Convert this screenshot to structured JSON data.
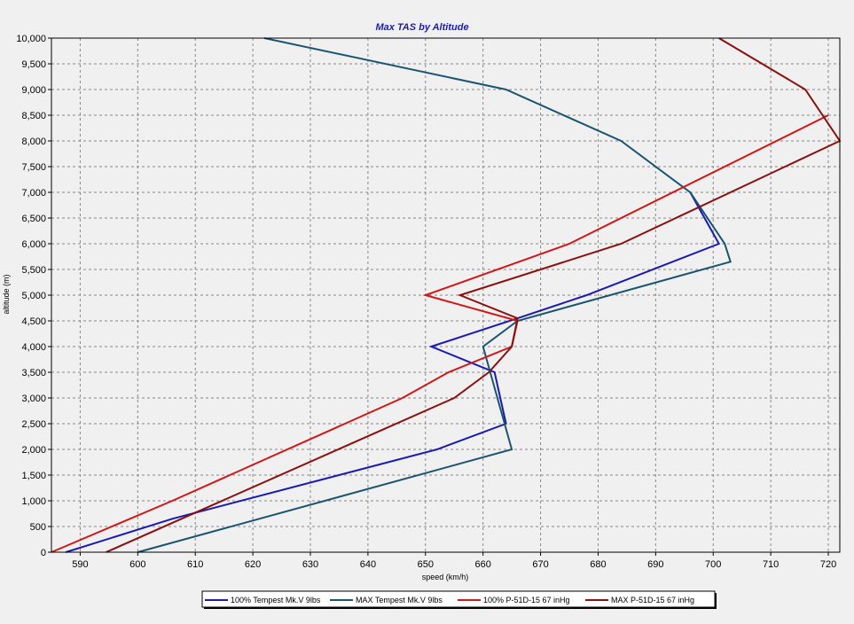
{
  "chart_data": {
    "type": "line",
    "title": "Max TAS by Altitude",
    "title_color": "#1c1cb0",
    "xlabel": "speed (km/h)",
    "ylabel": "altitude (m)",
    "xlim": [
      585,
      722
    ],
    "ylim": [
      0,
      10000
    ],
    "x_ticks": [
      590,
      600,
      610,
      620,
      630,
      640,
      650,
      660,
      670,
      680,
      690,
      700,
      710,
      720
    ],
    "y_ticks": [
      0,
      500,
      1000,
      1500,
      2000,
      2500,
      3000,
      3500,
      4000,
      4500,
      5000,
      5500,
      6000,
      6500,
      7000,
      7500,
      8000,
      8500,
      9000,
      9500,
      10000
    ],
    "y_tick_labels": [
      "0",
      "500",
      "1,000",
      "1,500",
      "2,000",
      "2,500",
      "3,000",
      "3,500",
      "4,000",
      "4,500",
      "5,000",
      "5,500",
      "6,000",
      "6,500",
      "7,000",
      "7,500",
      "8,000",
      "8,500",
      "9,000",
      "9,500",
      "10,000"
    ],
    "grid": true,
    "legend_position": "bottom",
    "series": [
      {
        "name": "100% Tempest Mk.V  9lbs",
        "color": "#1a1ab0",
        "points": [
          [
            587.5,
            0
          ],
          [
            606,
            650
          ],
          [
            652,
            2000
          ],
          [
            664,
            2500
          ],
          [
            662,
            3500
          ],
          [
            651,
            4000
          ],
          [
            666,
            4550
          ],
          [
            678,
            5000
          ],
          [
            701,
            6000
          ],
          [
            696,
            7000
          ]
        ]
      },
      {
        "name": "MAX Tempest Mk.V  9lbs",
        "color": "#1a5570",
        "points": [
          [
            600,
            0
          ],
          [
            665,
            2000
          ],
          [
            660,
            4000
          ],
          [
            666,
            4500
          ],
          [
            703,
            5650
          ],
          [
            702,
            6000
          ],
          [
            696,
            7000
          ],
          [
            684,
            8000
          ],
          [
            664,
            9000
          ],
          [
            622,
            10000
          ]
        ]
      },
      {
        "name": "100% P-51D-15 67 inHg",
        "color": "#d01818",
        "points": [
          [
            585,
            0
          ],
          [
            606,
            1000
          ],
          [
            621,
            1750
          ],
          [
            646,
            3000
          ],
          [
            654,
            3500
          ],
          [
            665,
            4000
          ],
          [
            666,
            4500
          ],
          [
            650,
            5000
          ],
          [
            675,
            6000
          ],
          [
            720,
            8500
          ]
        ]
      },
      {
        "name": "MAX P-51D-15 67 inHg",
        "color": "#8a1010",
        "points": [
          [
            594.5,
            0
          ],
          [
            655,
            3000
          ],
          [
            661,
            3500
          ],
          [
            665,
            4000
          ],
          [
            666,
            4550
          ],
          [
            656,
            5000
          ],
          [
            684,
            6000
          ],
          [
            722,
            8000
          ],
          [
            716,
            9000
          ],
          [
            701,
            10000
          ]
        ]
      }
    ]
  }
}
